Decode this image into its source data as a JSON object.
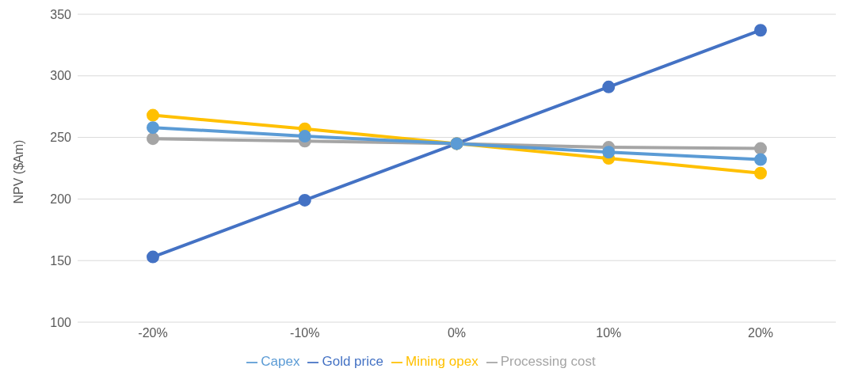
{
  "chart_data": {
    "type": "line",
    "ylabel": "NPV ($Am)",
    "categories": [
      "-20%",
      "-10%",
      "0%",
      "10%",
      "20%"
    ],
    "series": [
      {
        "name": "Gold price",
        "color": "#4472c4",
        "values": [
          153,
          199,
          245,
          291,
          337
        ]
      },
      {
        "name": "Processing cost",
        "color": "#a5a5a5",
        "values": [
          249,
          247,
          245,
          242,
          241
        ]
      },
      {
        "name": "Mining opex",
        "color": "#ffc000",
        "values": [
          268,
          257,
          245,
          233,
          221
        ]
      },
      {
        "name": "Capex",
        "color": "#5b9bd5",
        "values": [
          258,
          251,
          245,
          238,
          232
        ]
      }
    ],
    "ylim": [
      100,
      350
    ],
    "yticks": [
      100,
      150,
      200,
      250,
      300,
      350
    ],
    "grid": "y",
    "legend": "bottom",
    "marker": "circle",
    "line_style": "solid"
  }
}
